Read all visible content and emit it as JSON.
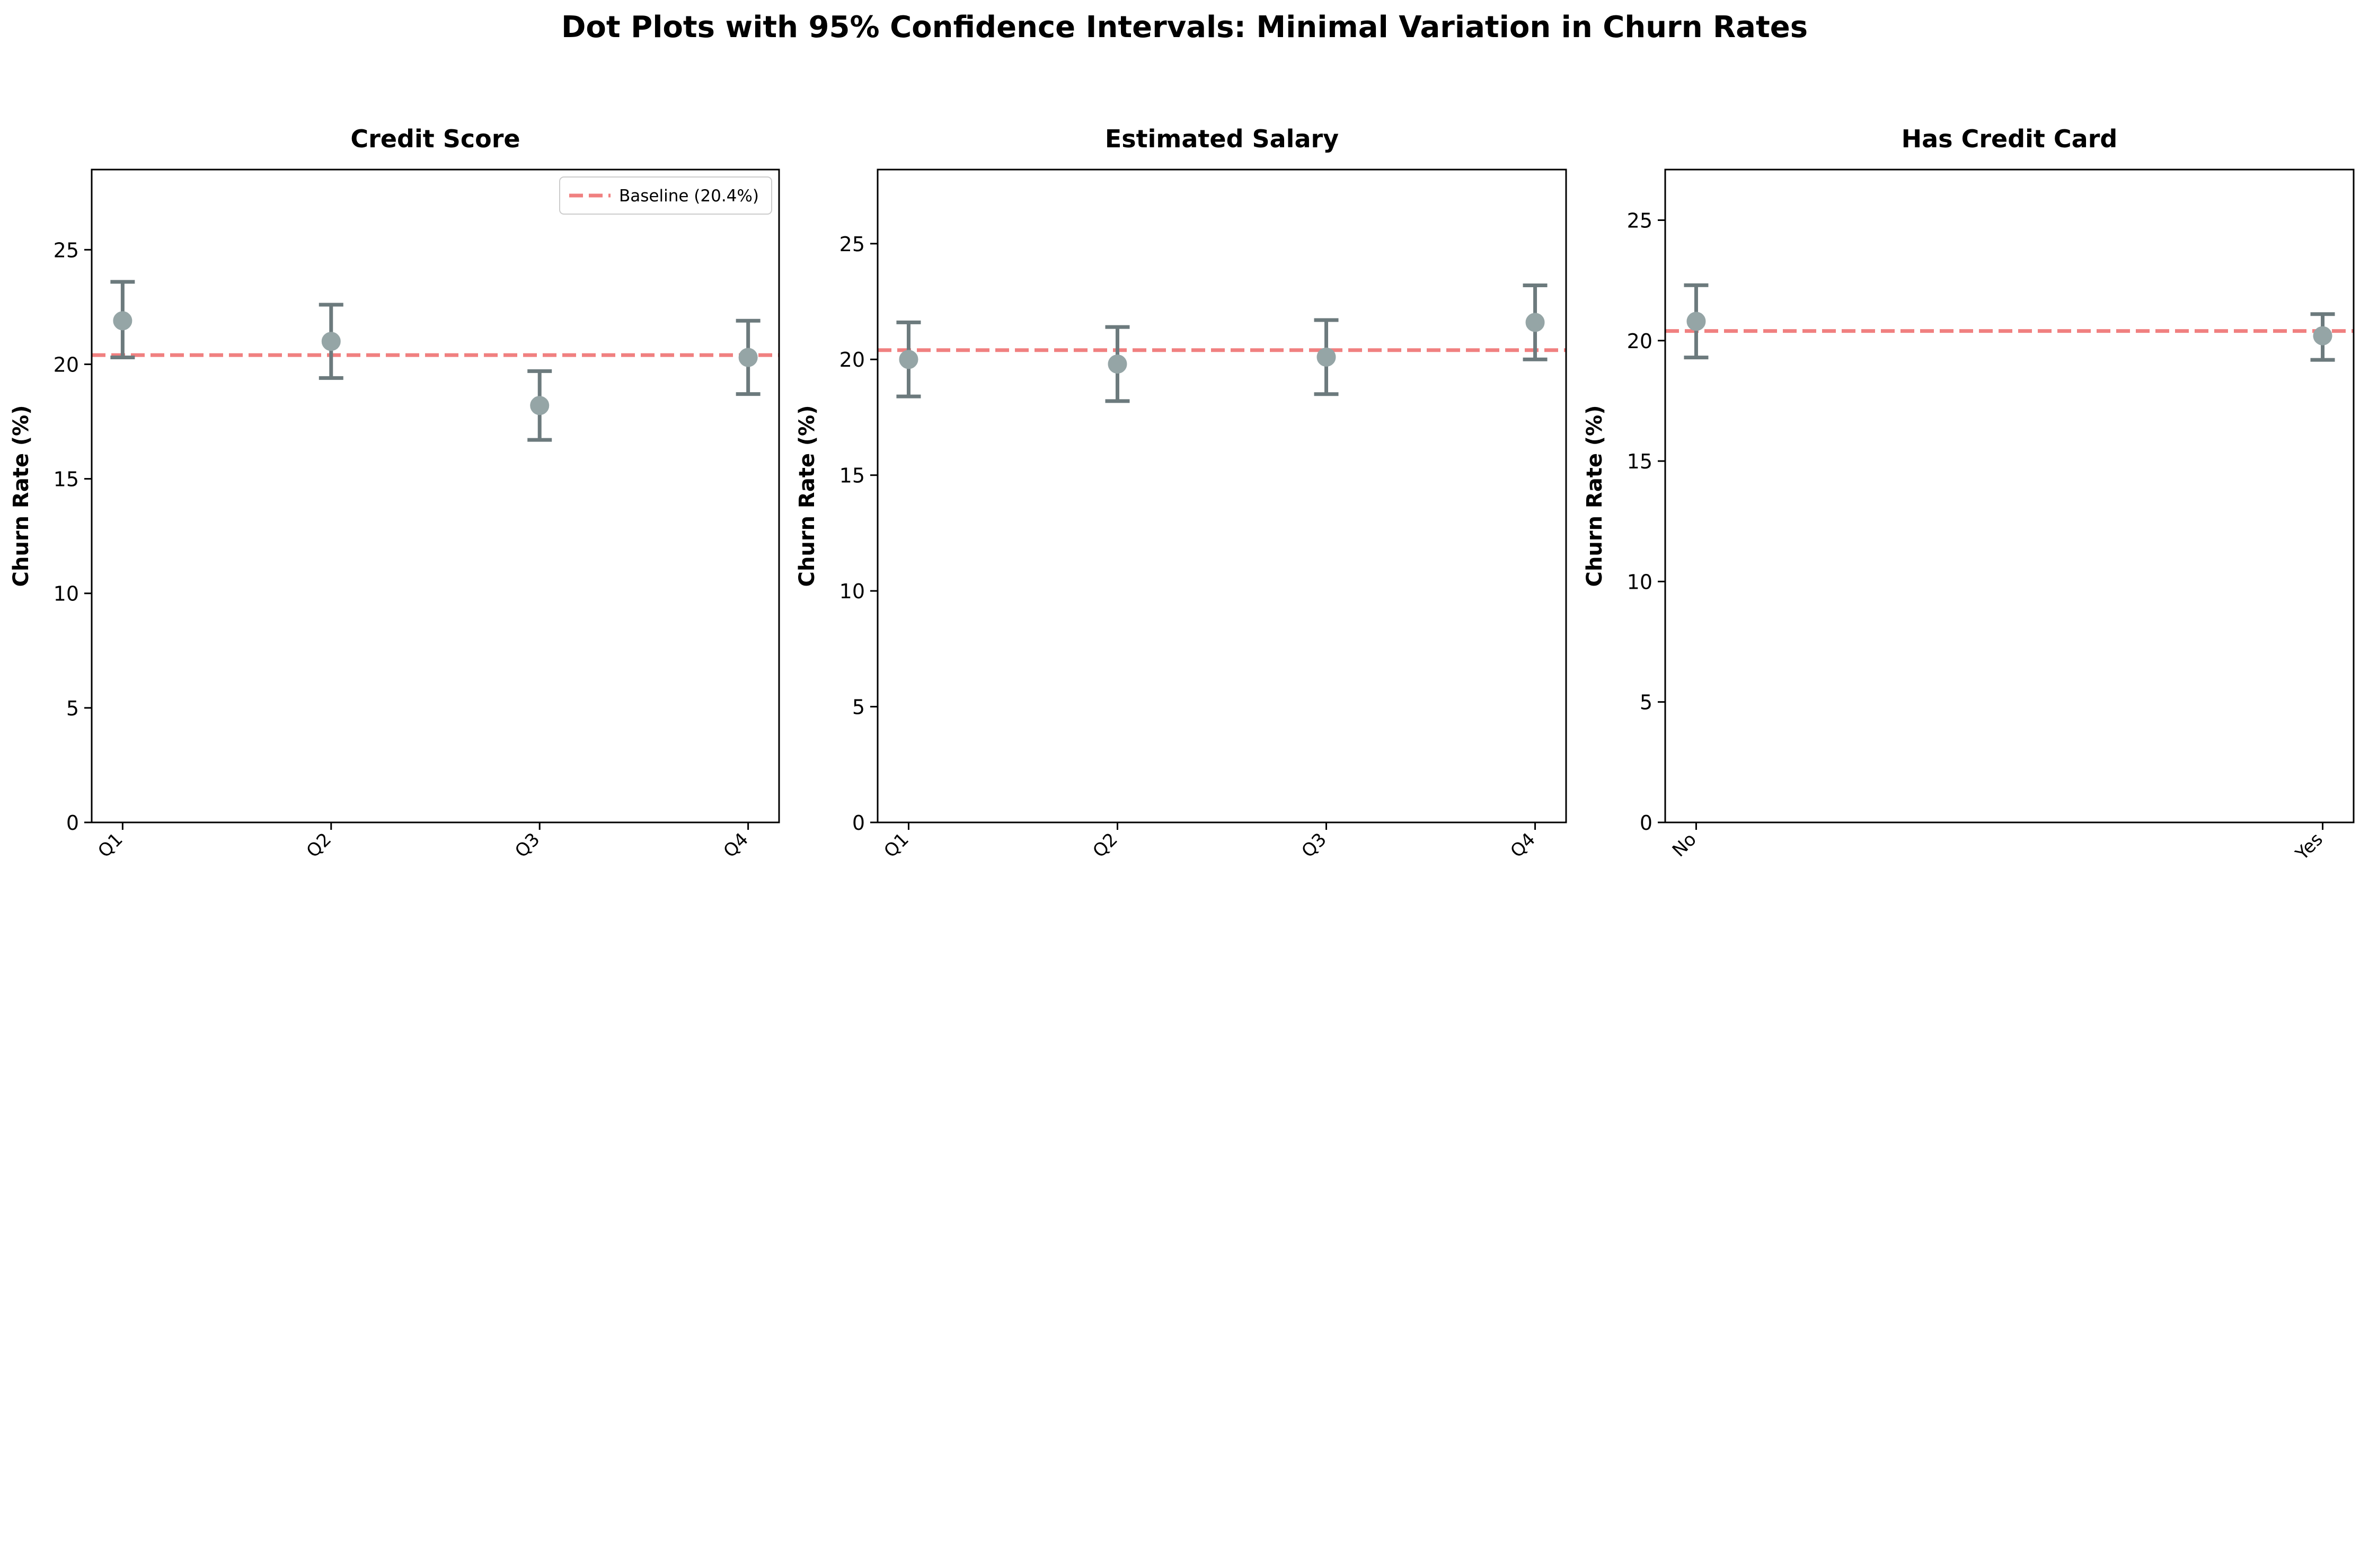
{
  "title": "Dot Plots with 95% Confidence Intervals: Minimal Variation in Churn Rates",
  "colors": {
    "point": "#95a5a6",
    "errorbar": "#6c7a7d",
    "baseline": "#f08080",
    "axis": "#000000"
  },
  "chart_data": [
    {
      "type": "scatter",
      "title": "Credit Score",
      "ylabel": "Churn Rate (%)",
      "ylim": [
        0,
        28.5
      ],
      "yticks": [
        0,
        5,
        10,
        15,
        20,
        25
      ],
      "categories": [
        "Q1",
        "Q2",
        "Q3",
        "Q4"
      ],
      "values": [
        21.9,
        21.0,
        18.2,
        20.3
      ],
      "ci_low": [
        20.3,
        19.4,
        16.7,
        18.7
      ],
      "ci_high": [
        23.6,
        22.6,
        19.7,
        21.9
      ],
      "baseline": 20.4,
      "legend": {
        "label": "Baseline (20.4%)",
        "position": "upper right"
      }
    },
    {
      "type": "scatter",
      "title": "Estimated Salary",
      "ylabel": "Churn Rate (%)",
      "ylim": [
        0,
        28.2
      ],
      "yticks": [
        0,
        5,
        10,
        15,
        20,
        25
      ],
      "categories": [
        "Q1",
        "Q2",
        "Q3",
        "Q4"
      ],
      "values": [
        20.0,
        19.8,
        20.1,
        21.6
      ],
      "ci_low": [
        18.4,
        18.2,
        18.5,
        20.0
      ],
      "ci_high": [
        21.6,
        21.4,
        21.7,
        23.2
      ],
      "baseline": 20.4
    },
    {
      "type": "scatter",
      "title": "Has Credit Card",
      "ylabel": "Churn Rate (%)",
      "ylim": [
        0,
        27.1
      ],
      "yticks": [
        0,
        5,
        10,
        15,
        20,
        25
      ],
      "categories": [
        "No",
        "Yes"
      ],
      "values": [
        20.8,
        20.2
      ],
      "ci_low": [
        19.3,
        19.2
      ],
      "ci_high": [
        22.3,
        21.1
      ],
      "baseline": 20.4
    }
  ]
}
